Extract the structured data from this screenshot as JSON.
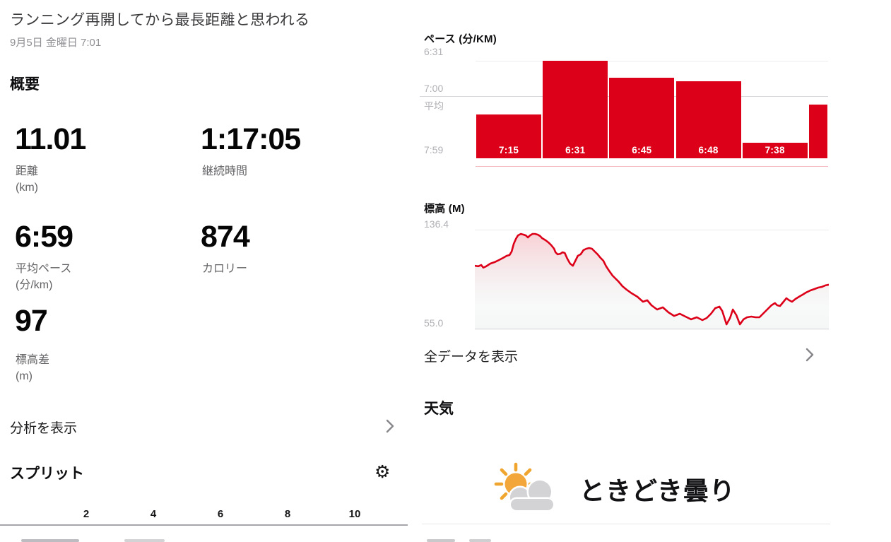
{
  "colors": {
    "red": "#dc0018",
    "sun_orange": "#f3a73a",
    "cloud_gray": "#d3d3d6"
  },
  "post": {
    "title": "ランニング再開してから最長距離と思われる",
    "datetime": "9月5日 金曜日 7:01"
  },
  "overview": {
    "heading": "概要",
    "stats": [
      {
        "value": "11.01",
        "label": "距離",
        "unit": "(km)"
      },
      {
        "value": "1:17:05",
        "label": "継続時間",
        "unit": ""
      },
      {
        "value": "6:59",
        "label": "平均ペース",
        "unit": "(分/km)"
      },
      {
        "value": "874",
        "label": "カロリー",
        "unit": ""
      },
      {
        "value": "97",
        "label": "標高差",
        "unit": "(m)"
      }
    ],
    "analysis_link": "分析を表示"
  },
  "splits": {
    "heading": "スプリット",
    "gear_glyph": "⚙"
  },
  "links": {
    "all_data": "全データを表示"
  },
  "weather": {
    "heading": "天気",
    "condition": "ときどき曇り",
    "icon": "sun-behind-cloud"
  },
  "chart_data": [
    {
      "type": "bar",
      "title": "ペース (分/KM)",
      "y_axis": {
        "top_label": "6:31",
        "avg_label": "7:00",
        "avg_sub_label": "平均",
        "bottom_label": "7:59"
      },
      "ylim_sec": [
        390,
        471
      ],
      "top_grid_sec": 391,
      "avg_sec": 420,
      "legend": "none",
      "bars": [
        {
          "label": "7:15",
          "pace_sec": 435,
          "width_km": 2
        },
        {
          "label": "6:31",
          "pace_sec": 391,
          "width_km": 2
        },
        {
          "label": "6:45",
          "pace_sec": 405,
          "width_km": 2
        },
        {
          "label": "6:48",
          "pace_sec": 408,
          "width_km": 2
        },
        {
          "label": "7:38",
          "pace_sec": 458,
          "width_km": 2
        },
        {
          "label": "",
          "pace_sec": 427,
          "width_km": 0.6
        }
      ]
    },
    {
      "type": "area",
      "title": "標高 (M)",
      "ymax": 136.4,
      "ymin": 55.0,
      "ymax_label": "136.4",
      "ymin_label": "55.0",
      "points": [
        [
          0.0,
          106.7
        ],
        [
          0.01,
          106.3
        ],
        [
          0.018,
          107.3
        ],
        [
          0.024,
          105.2
        ],
        [
          0.032,
          106.2
        ],
        [
          0.044,
          108.5
        ],
        [
          0.056,
          109.7
        ],
        [
          0.068,
          111.4
        ],
        [
          0.08,
          113.2
        ],
        [
          0.09,
          114.9
        ],
        [
          0.098,
          115.5
        ],
        [
          0.104,
          118.4
        ],
        [
          0.11,
          124.8
        ],
        [
          0.116,
          128.8
        ],
        [
          0.122,
          131.7
        ],
        [
          0.13,
          132.9
        ],
        [
          0.138,
          132.3
        ],
        [
          0.144,
          131.7
        ],
        [
          0.15,
          130.0
        ],
        [
          0.156,
          131.7
        ],
        [
          0.163,
          132.9
        ],
        [
          0.17,
          132.9
        ],
        [
          0.178,
          132.3
        ],
        [
          0.184,
          131.2
        ],
        [
          0.19,
          129.4
        ],
        [
          0.2,
          127.7
        ],
        [
          0.208,
          125.9
        ],
        [
          0.216,
          123.6
        ],
        [
          0.224,
          120.7
        ],
        [
          0.228,
          117.8
        ],
        [
          0.234,
          116.1
        ],
        [
          0.242,
          116.6
        ],
        [
          0.248,
          117.8
        ],
        [
          0.254,
          117.2
        ],
        [
          0.261,
          112.6
        ],
        [
          0.269,
          108.5
        ],
        [
          0.277,
          106.7
        ],
        [
          0.283,
          110.2
        ],
        [
          0.291,
          114.9
        ],
        [
          0.299,
          116.1
        ],
        [
          0.307,
          119.6
        ],
        [
          0.315,
          120.7
        ],
        [
          0.323,
          121.3
        ],
        [
          0.331,
          120.7
        ],
        [
          0.339,
          118.4
        ],
        [
          0.347,
          116.1
        ],
        [
          0.355,
          113.2
        ],
        [
          0.363,
          110.8
        ],
        [
          0.371,
          106.2
        ],
        [
          0.379,
          102.7
        ],
        [
          0.389,
          98.6
        ],
        [
          0.397,
          96.3
        ],
        [
          0.405,
          94.0
        ],
        [
          0.417,
          89.9
        ],
        [
          0.429,
          87.0
        ],
        [
          0.443,
          84.1
        ],
        [
          0.459,
          81.2
        ],
        [
          0.475,
          77.1
        ],
        [
          0.487,
          78.3
        ],
        [
          0.499,
          74.2
        ],
        [
          0.515,
          70.7
        ],
        [
          0.531,
          72.5
        ],
        [
          0.547,
          68.4
        ],
        [
          0.563,
          65.4
        ],
        [
          0.579,
          67.2
        ],
        [
          0.595,
          64.9
        ],
        [
          0.611,
          62.6
        ],
        [
          0.627,
          64.3
        ],
        [
          0.643,
          62.0
        ],
        [
          0.655,
          63.7
        ],
        [
          0.667,
          67.2
        ],
        [
          0.679,
          71.8
        ],
        [
          0.691,
          73.0
        ],
        [
          0.699,
          69.5
        ],
        [
          0.711,
          58.5
        ],
        [
          0.721,
          63.7
        ],
        [
          0.729,
          70.7
        ],
        [
          0.739,
          66.0
        ],
        [
          0.749,
          58.5
        ],
        [
          0.759,
          62.6
        ],
        [
          0.769,
          64.3
        ],
        [
          0.781,
          64.9
        ],
        [
          0.793,
          64.3
        ],
        [
          0.804,
          64.3
        ],
        [
          0.816,
          67.8
        ],
        [
          0.828,
          71.3
        ],
        [
          0.838,
          74.2
        ],
        [
          0.848,
          76.0
        ],
        [
          0.854,
          74.2
        ],
        [
          0.862,
          73.6
        ],
        [
          0.872,
          77.1
        ],
        [
          0.88,
          80.0
        ],
        [
          0.888,
          78.3
        ],
        [
          0.896,
          77.1
        ],
        [
          0.906,
          79.4
        ],
        [
          0.916,
          81.2
        ],
        [
          0.926,
          82.9
        ],
        [
          0.936,
          84.7
        ],
        [
          0.948,
          86.4
        ],
        [
          0.96,
          87.6
        ],
        [
          0.97,
          88.7
        ],
        [
          0.98,
          89.3
        ],
        [
          0.99,
          90.5
        ],
        [
          1.0,
          91.1
        ]
      ]
    },
    {
      "type": "axis",
      "title": "スプリット",
      "ticks": [
        2,
        4,
        6,
        8,
        10
      ]
    }
  ]
}
